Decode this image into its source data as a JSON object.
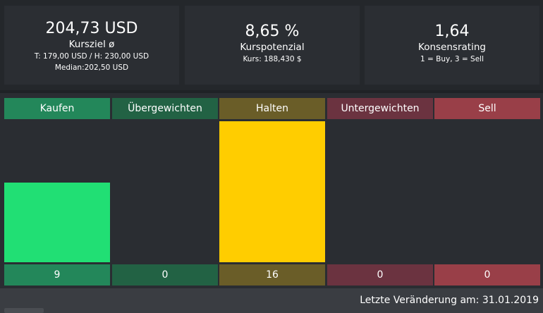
{
  "cards": {
    "target": {
      "value": "204,73 USD",
      "label": "Kursziel ø",
      "range": "T: 179,00 USD / H: 230,00 USD",
      "median": "Median:202,50 USD"
    },
    "potential": {
      "value": "8,65 %",
      "label": "Kurspotenzial",
      "price": "Kurs: 188,430 $"
    },
    "consensus": {
      "value": "1,64",
      "label": "Konsensrating",
      "scale": "1 = Buy, 3 = Sell"
    }
  },
  "chart_data": {
    "type": "bar",
    "categories": [
      "Kaufen",
      "Übergewichten",
      "Halten",
      "Untergewichten",
      "Sell"
    ],
    "values": [
      9,
      0,
      16,
      0,
      0
    ],
    "value_labels": [
      "9",
      "0",
      "16",
      "0",
      "0"
    ],
    "ylim": [
      0,
      16
    ],
    "header_colors": [
      "#23875a",
      "#226244",
      "#6a5d28",
      "#6b3340",
      "#993f48"
    ],
    "bar_colors": [
      "#21df74",
      "#2a8a5a",
      "#ffcd00",
      "#8a3a48",
      "#c0444f"
    ],
    "count_colors": [
      "#23875a",
      "#226244",
      "#6a5d28",
      "#6b3340",
      "#993f48"
    ]
  },
  "footer": {
    "last_change": "Letzte Veränderung am: 31.01.2019"
  }
}
